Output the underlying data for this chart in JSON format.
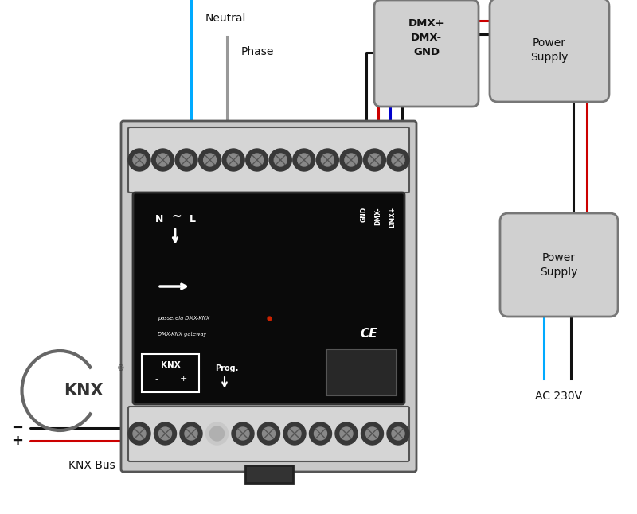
{
  "bg_color": "#ffffff",
  "wire_neutral": "#00aaff",
  "wire_phase": "#888888",
  "wire_black": "#111111",
  "wire_red": "#cc0000",
  "wire_blue": "#0000cc",
  "device_grey": "#c8c8c8",
  "device_light": "#d5d5d5",
  "box_grey": "#d0d0d0",
  "box_edge": "#777777",
  "face_color": "#0a0a0a",
  "text_dark": "#111111",
  "label_neutral": "Neutral",
  "label_phase": "Phase",
  "label_dmx": "DMX+\nDMX-\nGND",
  "label_ps1": "Power\nSupply",
  "label_ps2": "Power\nSupply",
  "label_ac": "AC 230V",
  "label_knx_bus": "KNX Bus",
  "lw_wire": 2.2
}
